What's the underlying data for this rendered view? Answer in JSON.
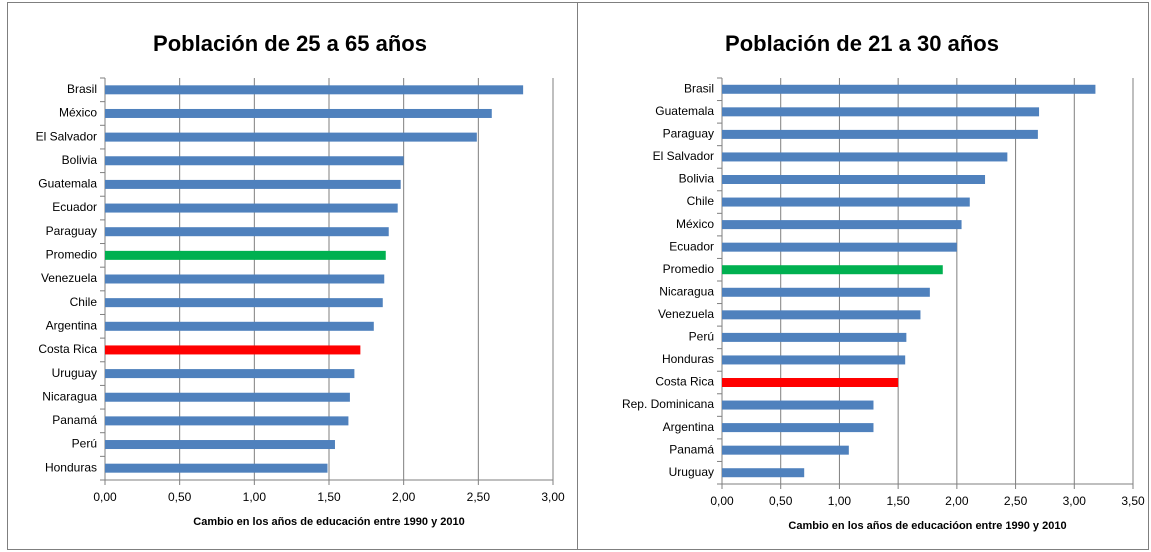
{
  "chart_data": [
    {
      "type": "bar",
      "orientation": "horizontal",
      "title": "Población de 25 a 65 años",
      "x_label": "Cambio en los años de educación entre 1990 y 2010",
      "categories": [
        "Brasil",
        "México",
        "El Salvador",
        "Bolivia",
        "Guatemala",
        "Ecuador",
        "Paraguay",
        "Promedio",
        "Venezuela",
        "Chile",
        "Argentina",
        "Costa Rica",
        "Uruguay",
        "Nicaragua",
        "Panamá",
        "Perú",
        "Honduras"
      ],
      "values": [
        2.8,
        2.59,
        2.49,
        2.0,
        1.98,
        1.96,
        1.9,
        1.88,
        1.87,
        1.86,
        1.8,
        1.71,
        1.67,
        1.64,
        1.63,
        1.54,
        1.49
      ],
      "colors": [
        "#4f81bd",
        "#4f81bd",
        "#4f81bd",
        "#4f81bd",
        "#4f81bd",
        "#4f81bd",
        "#4f81bd",
        "#00b050",
        "#4f81bd",
        "#4f81bd",
        "#4f81bd",
        "#ff0000",
        "#4f81bd",
        "#4f81bd",
        "#4f81bd",
        "#4f81bd",
        "#4f81bd"
      ],
      "xlim": [
        0,
        3
      ],
      "xticks": [
        {
          "value": 0,
          "label": "0,00"
        },
        {
          "value": 0.5,
          "label": "0,50"
        },
        {
          "value": 1,
          "label": "1,00"
        },
        {
          "value": 1.5,
          "label": "1,50"
        },
        {
          "value": 2,
          "label": "2,00"
        },
        {
          "value": 2.5,
          "label": "2,50"
        },
        {
          "value": 3,
          "label": "3,00"
        }
      ],
      "grid": true
    },
    {
      "type": "bar",
      "orientation": "horizontal",
      "title": "Población de 21 a 30 años",
      "x_label": "Cambio en los años de educacióon entre 1990 y 2010",
      "categories": [
        "Brasil",
        "Guatemala",
        "Paraguay",
        "El Salvador",
        "Bolivia",
        "Chile",
        "México",
        "Ecuador",
        "Promedio",
        "Nicaragua",
        "Venezuela",
        "Perú",
        "Honduras",
        "Costa Rica",
        "Rep. Dominicana",
        "Argentina",
        "Panamá",
        "Uruguay"
      ],
      "values": [
        3.18,
        2.7,
        2.69,
        2.43,
        2.24,
        2.11,
        2.04,
        2.0,
        1.88,
        1.77,
        1.69,
        1.57,
        1.56,
        1.5,
        1.29,
        1.29,
        1.08,
        0.7
      ],
      "colors": [
        "#4f81bd",
        "#4f81bd",
        "#4f81bd",
        "#4f81bd",
        "#4f81bd",
        "#4f81bd",
        "#4f81bd",
        "#4f81bd",
        "#00b050",
        "#4f81bd",
        "#4f81bd",
        "#4f81bd",
        "#4f81bd",
        "#ff0000",
        "#4f81bd",
        "#4f81bd",
        "#4f81bd",
        "#4f81bd"
      ],
      "xlim": [
        0,
        3.5
      ],
      "xticks": [
        {
          "value": 0,
          "label": "0,00"
        },
        {
          "value": 0.5,
          "label": "0,50"
        },
        {
          "value": 1,
          "label": "1,00"
        },
        {
          "value": 1.5,
          "label": "1,50"
        },
        {
          "value": 2,
          "label": "2,00"
        },
        {
          "value": 2.5,
          "label": "2,50"
        },
        {
          "value": 3,
          "label": "3,00"
        },
        {
          "value": 3.5,
          "label": "3,50"
        }
      ],
      "grid": true
    }
  ]
}
